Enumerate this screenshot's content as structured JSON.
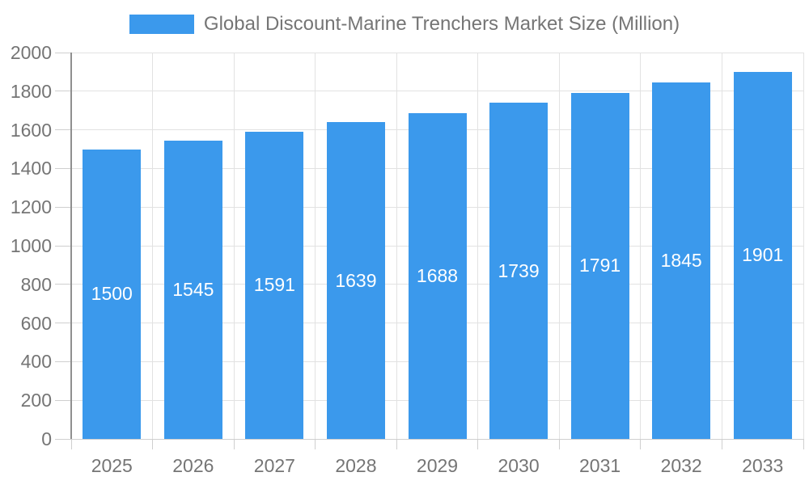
{
  "chart_data": {
    "type": "bar",
    "title": "Global Discount-Marine Trenchers Market Size (Million)",
    "categories": [
      "2025",
      "2026",
      "2027",
      "2028",
      "2029",
      "2030",
      "2031",
      "2032",
      "2033"
    ],
    "values": [
      1500,
      1545,
      1591,
      1639,
      1688,
      1739,
      1791,
      1845,
      1901
    ],
    "xlabel": "",
    "ylabel": "",
    "ylim": [
      0,
      2000
    ],
    "ytick_step": 200,
    "ytick_labels": [
      "0",
      "200",
      "400",
      "600",
      "800",
      "1000",
      "1200",
      "1400",
      "1600",
      "1800",
      "2000"
    ],
    "grid": true,
    "legend_position": "top-center",
    "colors": {
      "bar": "#3b99ec",
      "bar_value_text": "#ffffff",
      "axis_text": "#757575",
      "title_text": "#757575",
      "gridline": "#e2e2e2",
      "y_axis_line": "#8f8f8f",
      "x_axis_line": "#cfcfcf",
      "tick": "#cfcfcf",
      "background": "#ffffff"
    }
  }
}
